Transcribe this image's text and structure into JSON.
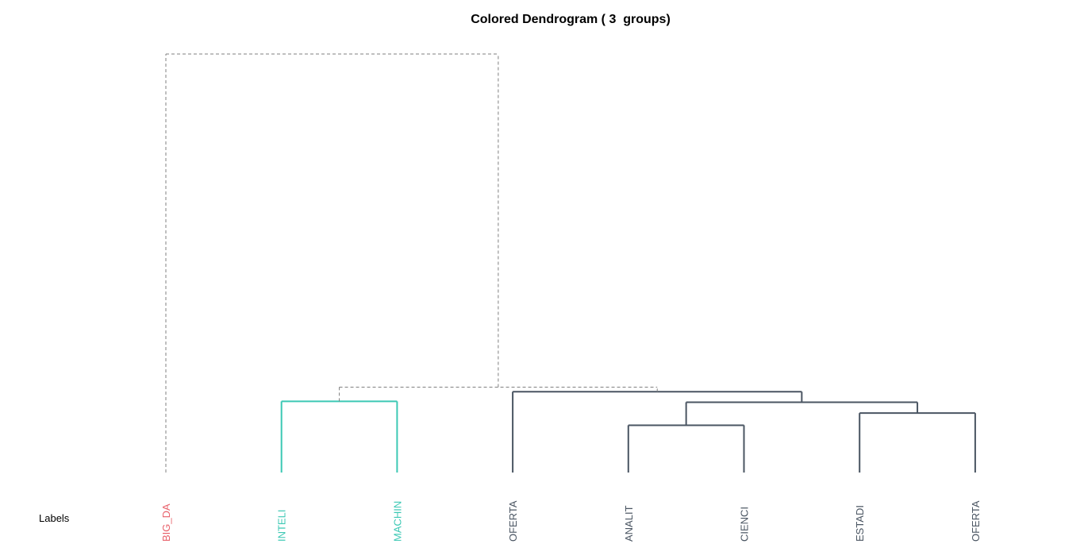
{
  "title": "Colored Dendrogram ( 3  groups)",
  "axis_label": "Labels",
  "colors": {
    "cut_line": "#808080",
    "group_red": "#e8606a",
    "group_teal": "#3cc8b4",
    "group_slate": "#4a5562"
  },
  "chart_data": {
    "type": "dendrogram",
    "title": "Colored Dendrogram ( 3  groups)",
    "xlabel": "Labels",
    "groups": 3,
    "leaves": [
      {
        "label": "BIG_DA",
        "group": "red"
      },
      {
        "label": "INTELI",
        "group": "teal"
      },
      {
        "label": "MACHIN",
        "group": "teal"
      },
      {
        "label": "OFERTA",
        "group": "slate"
      },
      {
        "label": "ANALIT",
        "group": "slate"
      },
      {
        "label": "CIENCI",
        "group": "slate"
      },
      {
        "label": "ESTADI",
        "group": "slate"
      },
      {
        "label": "OFERTA",
        "group": "slate"
      }
    ],
    "merges": [
      {
        "id": "m1",
        "left": 1,
        "right": 2,
        "height": 0.17,
        "group": "teal"
      },
      {
        "id": "m2",
        "left": 4,
        "right": 5,
        "height": 0.113,
        "group": "slate"
      },
      {
        "id": "m3",
        "left": 6,
        "right": 7,
        "height": 0.142,
        "group": "slate"
      },
      {
        "id": "m4",
        "left": "m2",
        "right": "m3",
        "height": 0.168,
        "group": "slate"
      },
      {
        "id": "m5",
        "left": 3,
        "right": "m4",
        "height": 0.193,
        "group": "slate"
      },
      {
        "id": "m6",
        "left": "m1",
        "right": "m5",
        "height": 0.204,
        "group": "cut"
      },
      {
        "id": "m7",
        "left": 0,
        "right": "m6",
        "height": 1.0,
        "group": "cut"
      }
    ]
  }
}
